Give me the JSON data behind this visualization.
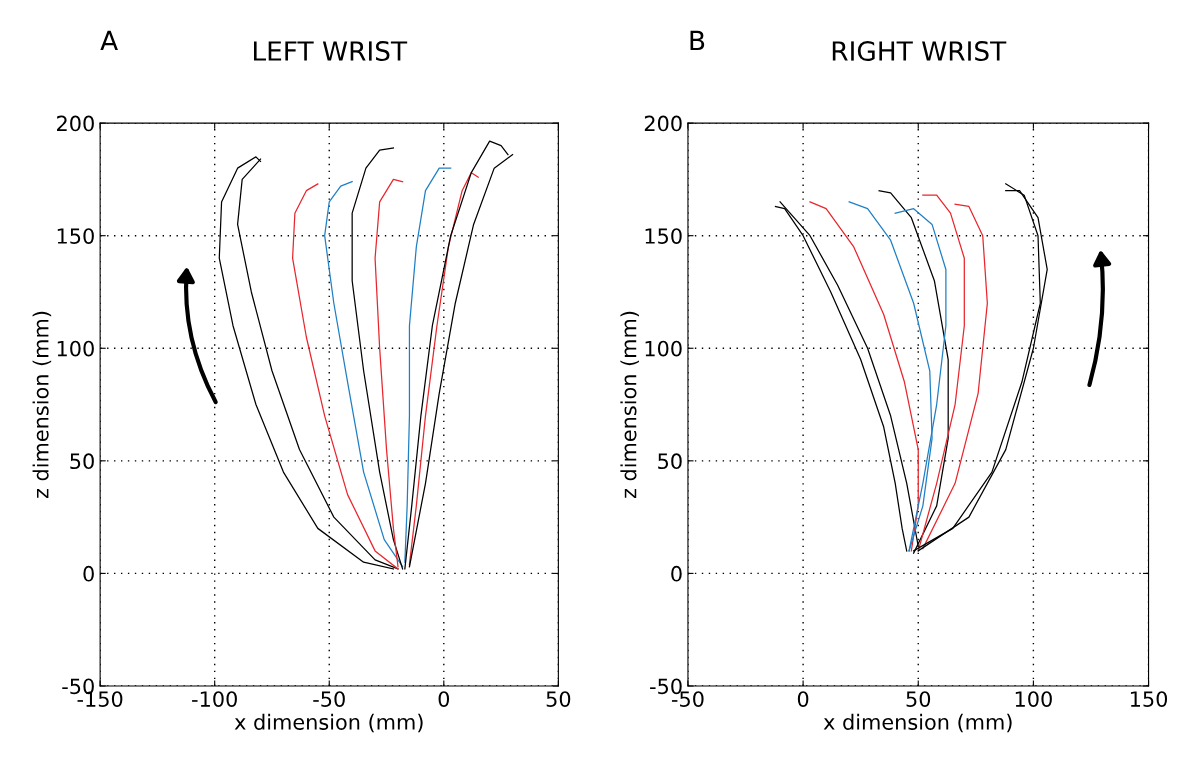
{
  "chart_data": [
    {
      "type": "line",
      "title": "LEFT WRIST",
      "annotations": [
        "A"
      ],
      "xlabel": "x dimension (mm)",
      "ylabel": "z dimension (mm)",
      "xlim": [
        -150,
        50
      ],
      "ylim": [
        -50,
        200
      ],
      "xticks": [
        -150,
        -100,
        -50,
        0,
        50
      ],
      "yticks": [
        -50,
        0,
        50,
        100,
        150,
        200
      ],
      "grid": true,
      "series": [
        {
          "color": "#000000",
          "x": [
            -22,
            -35,
            -55,
            -70,
            -82,
            -92,
            -98,
            -97,
            -90,
            -82,
            -80
          ],
          "values": [
            2,
            5,
            20,
            45,
            75,
            110,
            140,
            165,
            180,
            185,
            183
          ]
        },
        {
          "color": "#000000",
          "x": [
            -20,
            -30,
            -48,
            -63,
            -75,
            -84,
            -90,
            -88,
            -80
          ],
          "values": [
            2,
            6,
            25,
            55,
            90,
            125,
            155,
            175,
            184
          ]
        },
        {
          "color": "#e8262d",
          "x": [
            -20,
            -30,
            -42,
            -52,
            -60,
            -66,
            -65,
            -60,
            -55
          ],
          "values": [
            2,
            10,
            35,
            70,
            105,
            140,
            160,
            170,
            173
          ]
        },
        {
          "color": "#1f7fc4",
          "x": [
            -18,
            -26,
            -35,
            -42,
            -48,
            -52,
            -50,
            -45,
            -40
          ],
          "values": [
            3,
            15,
            45,
            85,
            120,
            150,
            165,
            172,
            174
          ]
        },
        {
          "color": "#000000",
          "x": [
            -18,
            -22,
            -28,
            -35,
            -40,
            -40,
            -34,
            -28,
            -22
          ],
          "values": [
            2,
            15,
            45,
            90,
            130,
            160,
            180,
            188,
            189
          ]
        },
        {
          "color": "#e8262d",
          "x": [
            -20,
            -22,
            -25,
            -28,
            -30,
            -28,
            -22,
            -18
          ],
          "values": [
            3,
            20,
            55,
            100,
            140,
            165,
            175,
            174
          ]
        },
        {
          "color": "#1f7fc4",
          "x": [
            -17,
            -16,
            -15,
            -15,
            -12,
            -8,
            -2,
            3
          ],
          "values": [
            5,
            30,
            70,
            110,
            145,
            170,
            180,
            180
          ]
        },
        {
          "color": "#e8262d",
          "x": [
            -15,
            -12,
            -8,
            -3,
            2,
            8,
            12,
            15
          ],
          "values": [
            4,
            30,
            70,
            110,
            145,
            170,
            178,
            176
          ]
        },
        {
          "color": "#000000",
          "x": [
            -17,
            -14,
            -10,
            -5,
            3,
            12,
            20,
            25,
            28
          ],
          "values": [
            2,
            30,
            70,
            110,
            150,
            178,
            192,
            190,
            186
          ]
        },
        {
          "color": "#000000",
          "x": [
            -15,
            -8,
            -2,
            5,
            13,
            22,
            30
          ],
          "values": [
            3,
            40,
            80,
            120,
            155,
            180,
            186
          ]
        }
      ]
    },
    {
      "type": "line",
      "title": "RIGHT WRIST",
      "annotations": [
        "B"
      ],
      "xlabel": "x dimension (mm)",
      "ylabel": "z dimension (mm)",
      "xlim": [
        -50,
        150
      ],
      "ylim": [
        -50,
        200
      ],
      "xticks": [
        -50,
        0,
        50,
        100,
        150
      ],
      "yticks": [
        -50,
        0,
        50,
        100,
        150,
        200
      ],
      "grid": true,
      "series": [
        {
          "color": "#000000",
          "x": [
            45,
            43,
            40,
            35,
            25,
            12,
            0,
            -8,
            -12
          ],
          "values": [
            10,
            20,
            40,
            65,
            95,
            125,
            150,
            162,
            163
          ]
        },
        {
          "color": "#000000",
          "x": [
            50,
            45,
            38,
            28,
            15,
            3,
            -10
          ],
          "values": [
            12,
            40,
            70,
            100,
            128,
            150,
            165
          ]
        },
        {
          "color": "#e8262d",
          "x": [
            47,
            50,
            50,
            44,
            35,
            22,
            10,
            3
          ],
          "values": [
            10,
            30,
            55,
            85,
            115,
            145,
            162,
            165
          ]
        },
        {
          "color": "#1f7fc4",
          "x": [
            46,
            52,
            56,
            55,
            48,
            38,
            28,
            20
          ],
          "values": [
            10,
            30,
            60,
            90,
            120,
            148,
            162,
            165
          ]
        },
        {
          "color": "#000000",
          "x": [
            48,
            58,
            63,
            63,
            57,
            47,
            38,
            33
          ],
          "values": [
            9,
            30,
            60,
            95,
            130,
            158,
            169,
            170
          ]
        },
        {
          "color": "#1f7fc4",
          "x": [
            46,
            52,
            58,
            62,
            62,
            56,
            48,
            40
          ],
          "values": [
            10,
            40,
            75,
            110,
            135,
            155,
            162,
            160
          ]
        },
        {
          "color": "#e8262d",
          "x": [
            50,
            58,
            66,
            70,
            70,
            64,
            58,
            52
          ],
          "values": [
            10,
            40,
            75,
            110,
            140,
            160,
            168,
            168
          ]
        },
        {
          "color": "#e8262d",
          "x": [
            52,
            66,
            76,
            80,
            78,
            72,
            66
          ],
          "values": [
            11,
            40,
            80,
            120,
            150,
            163,
            164
          ]
        },
        {
          "color": "#000000",
          "x": [
            48,
            65,
            82,
            95,
            103,
            102,
            96,
            88
          ],
          "values": [
            10,
            20,
            45,
            85,
            120,
            150,
            168,
            173
          ]
        },
        {
          "color": "#000000",
          "x": [
            50,
            72,
            88,
            100,
            106,
            102,
            94,
            88
          ],
          "values": [
            10,
            25,
            55,
            100,
            135,
            158,
            170,
            170
          ]
        }
      ]
    }
  ]
}
